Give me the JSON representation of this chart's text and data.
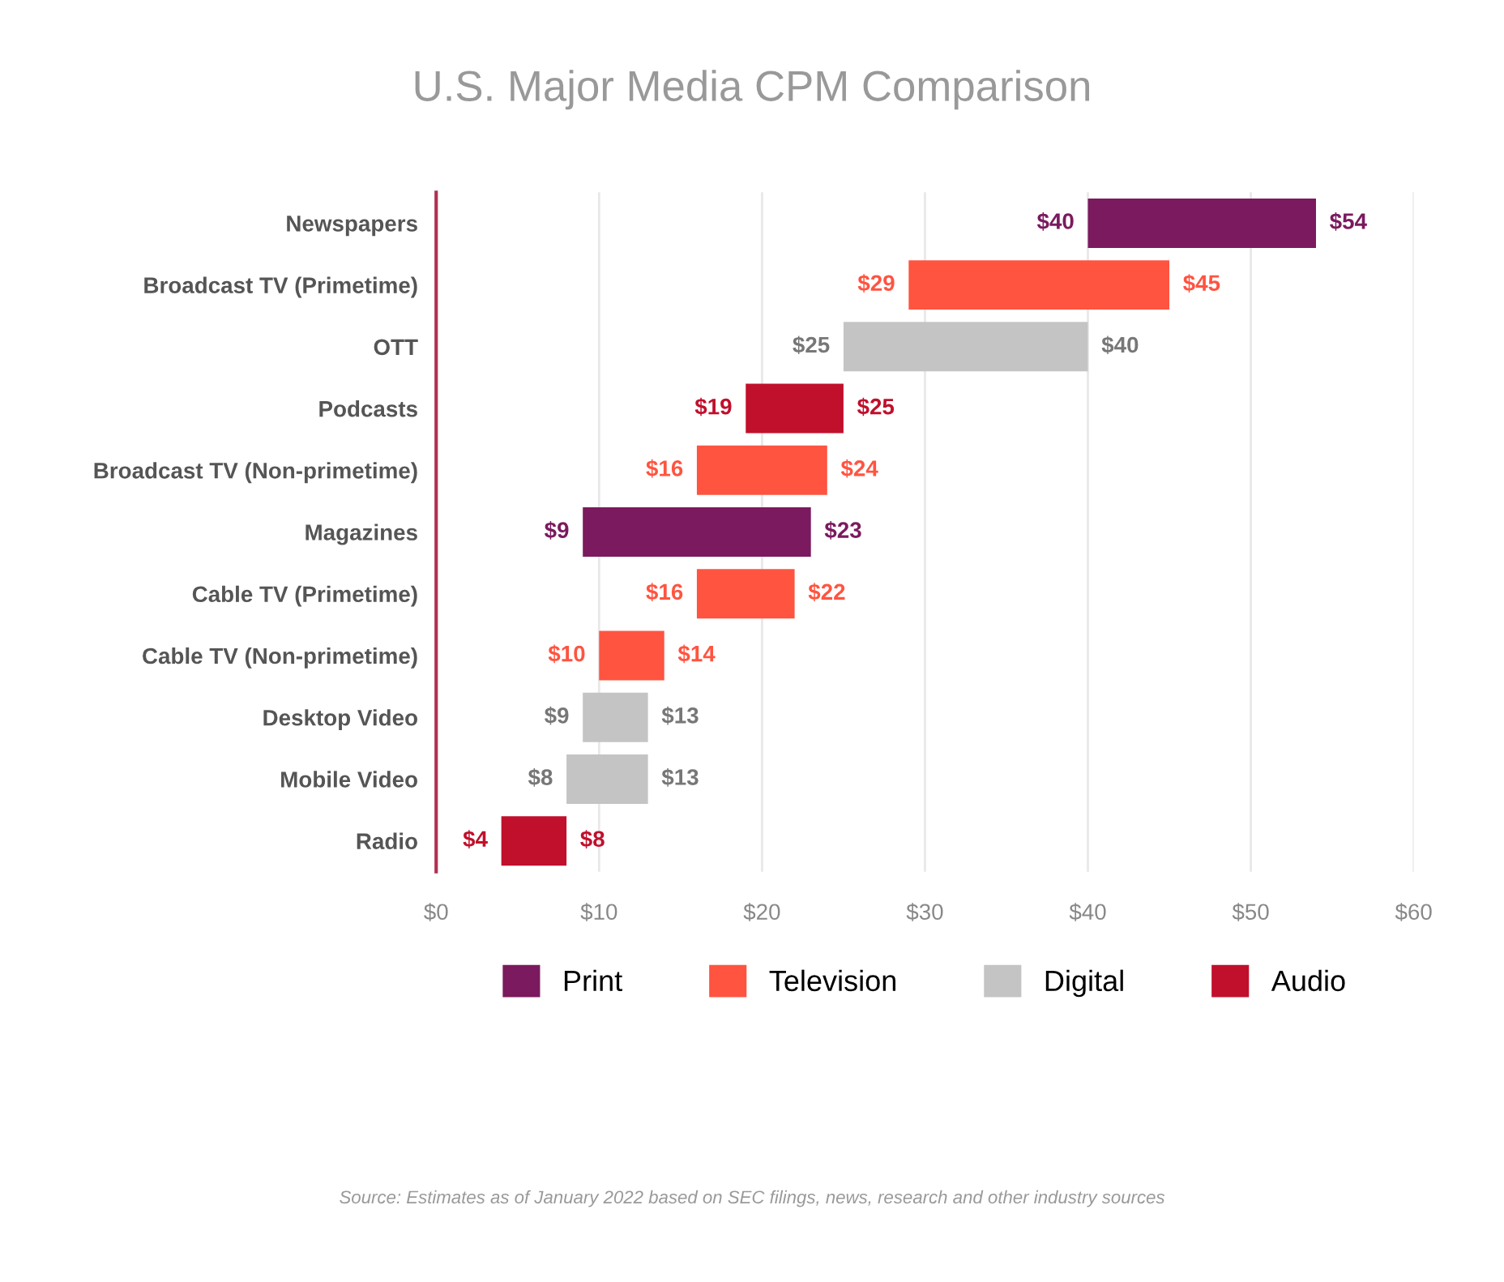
{
  "chart_data": {
    "type": "bar",
    "orientation": "horizontal",
    "title": "U.S. Major Media CPM Comparison",
    "categories": [
      "Newspapers",
      "Broadcast TV (Primetime)",
      "OTT",
      "Podcasts",
      "Broadcast TV (Non-primetime)",
      "Magazines",
      "Cable TV (Primetime)",
      "Cable TV (Non-primetime)",
      "Desktop Video",
      "Mobile Video",
      "Radio"
    ],
    "series": [
      {
        "name": "Print",
        "color": "#7b1a5e",
        "base": [
          40,
          null,
          null,
          null,
          null,
          9,
          null,
          null,
          null,
          null,
          null
        ],
        "values": [
          14,
          null,
          null,
          null,
          null,
          14,
          null,
          null,
          null,
          null,
          null
        ]
      },
      {
        "name": "Television",
        "color": "#ff5440",
        "base": [
          null,
          29,
          null,
          null,
          16,
          null,
          16,
          10,
          null,
          null,
          null
        ],
        "values": [
          null,
          16,
          null,
          null,
          8,
          null,
          6,
          4,
          null,
          null,
          null
        ]
      },
      {
        "name": "Digital",
        "color": "#c4c4c4",
        "base": [
          null,
          null,
          25,
          null,
          null,
          null,
          null,
          null,
          9,
          8,
          null
        ],
        "values": [
          null,
          null,
          15,
          null,
          null,
          null,
          null,
          null,
          4,
          5,
          null
        ]
      },
      {
        "name": "Audio",
        "color": "#c0102c",
        "base": [
          null,
          null,
          null,
          19,
          null,
          null,
          null,
          null,
          null,
          null,
          4
        ],
        "values": [
          null,
          null,
          null,
          6,
          null,
          null,
          null,
          null,
          null,
          null,
          4
        ]
      }
    ],
    "xlim": [
      0,
      60
    ],
    "xticks": [
      {
        "value": 0,
        "label": "$0"
      },
      {
        "value": 10,
        "label": "$10"
      },
      {
        "value": 20,
        "label": "$20"
      },
      {
        "value": 30,
        "label": "$30"
      },
      {
        "value": 40,
        "label": "$40"
      },
      {
        "value": 50,
        "label": "$50"
      },
      {
        "value": 60,
        "label": "$60"
      }
    ],
    "grid": "x",
    "legend": "bottom",
    "annotations": [
      {
        "text": "$40",
        "x": 40,
        "y": "Newspapers"
      },
      {
        "text": "$54",
        "x": 54,
        "y": "Newspapers"
      },
      {
        "text": "$29",
        "x": 29,
        "y": "Broadcast TV (Primetime)"
      },
      {
        "text": "$45",
        "x": 45,
        "y": "Broadcast TV (Primetime)"
      },
      {
        "text": "$25",
        "x": 25,
        "y": "OTT"
      },
      {
        "text": "$40",
        "x": 40,
        "y": "OTT"
      },
      {
        "text": "$19",
        "x": 19,
        "y": "Podcasts"
      },
      {
        "text": "$25",
        "x": 25,
        "y": "Podcasts"
      },
      {
        "text": "$16",
        "x": 16,
        "y": "Broadcast TV (Non-primetime)"
      },
      {
        "text": "$24",
        "x": 24,
        "y": "Broadcast TV (Non-primetime)"
      },
      {
        "text": "$9",
        "x": 9,
        "y": "Magazines"
      },
      {
        "text": "$23",
        "x": 23,
        "y": "Magazines"
      },
      {
        "text": "$16",
        "x": 16,
        "y": "Cable TV (Primetime)"
      },
      {
        "text": "$22",
        "x": 22,
        "y": "Cable TV (Primetime)"
      },
      {
        "text": "$10",
        "x": 10,
        "y": "Cable TV (Non-primetime)"
      },
      {
        "text": "$14",
        "x": 14,
        "y": "Cable TV (Non-primetime)"
      },
      {
        "text": "$9",
        "x": 9,
        "y": "Desktop Video"
      },
      {
        "text": "$13",
        "x": 13,
        "y": "Desktop Video"
      },
      {
        "text": "$8",
        "x": 8,
        "y": "Mobile Video"
      },
      {
        "text": "$13",
        "x": 13,
        "y": "Mobile Video"
      },
      {
        "text": "$4",
        "x": 4,
        "y": "Radio"
      },
      {
        "text": "$8",
        "x": 8,
        "y": "Radio"
      },
      "Source: Estimates as of January 2022 based on SEC filings, news, research and other industry sources"
    ]
  }
}
